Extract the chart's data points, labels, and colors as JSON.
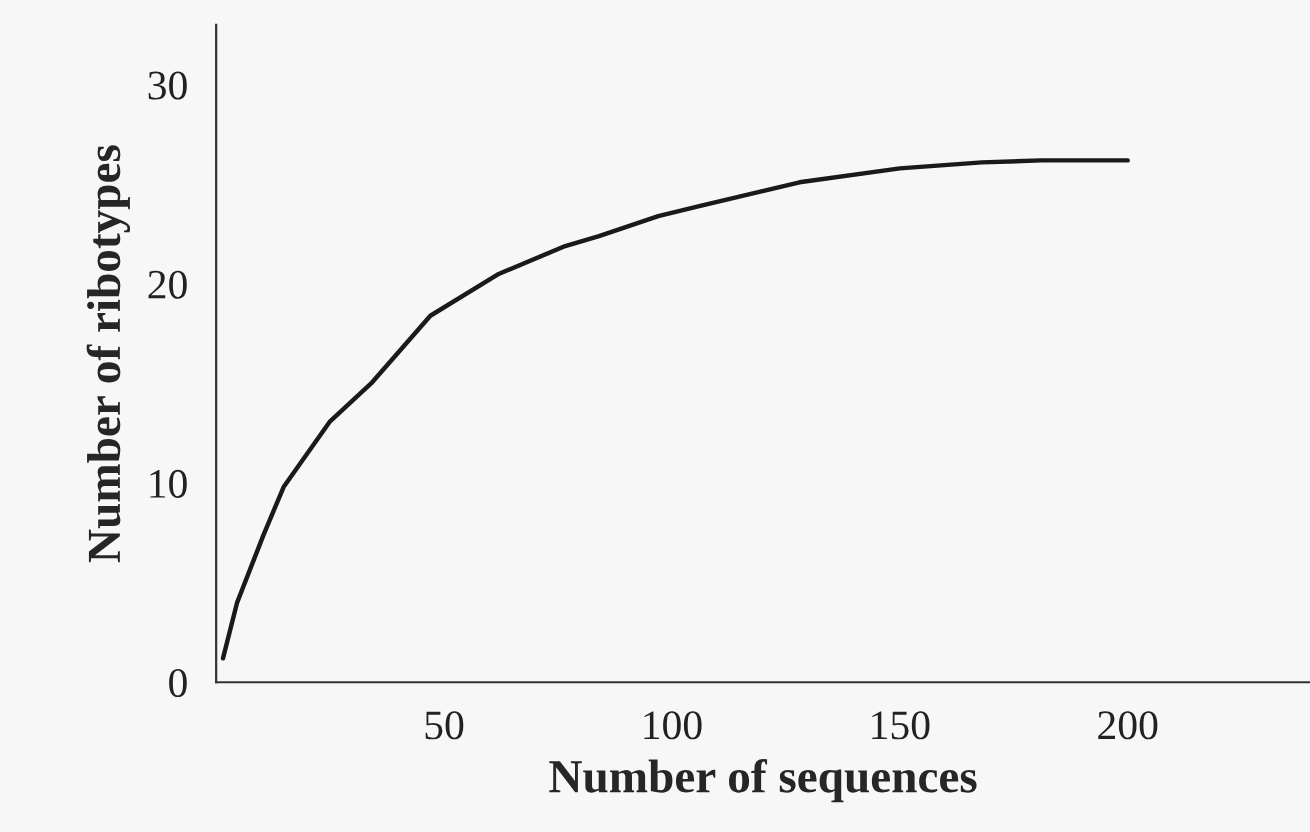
{
  "chart_data": {
    "type": "line",
    "xlabel": "Number of sequences",
    "ylabel": "Number of ribotypes",
    "series": [
      {
        "color": "#1a1a1a",
        "x": [
          1.5,
          4.6,
          10.4,
          14.8,
          25,
          34,
          47,
          62,
          76.6,
          84,
          97,
          106,
          128,
          150,
          168,
          181,
          200
        ],
        "values": [
          1.2,
          4.0,
          7.4,
          9.8,
          13.1,
          15,
          18.4,
          20.5,
          21.9,
          22.4,
          23.4,
          23.9,
          25.1,
          25.8,
          26.1,
          26.2,
          26.2
        ]
      }
    ],
    "xlim": [
      0,
      240
    ],
    "xticks": [
      50,
      100,
      150,
      200
    ],
    "ylim": [
      0,
      33
    ],
    "yticks": [
      0,
      10,
      20,
      30
    ],
    "grid": false,
    "marker": "none",
    "line_style": "solid"
  }
}
